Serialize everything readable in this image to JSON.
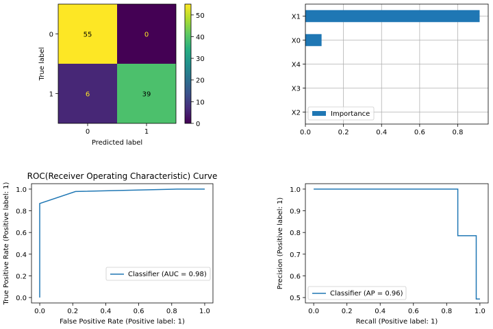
{
  "chart_data": [
    {
      "type": "heatmap",
      "xlabel": "Predicted label",
      "ylabel": "True label",
      "x_tick_labels": [
        "0",
        "1"
      ],
      "y_tick_labels": [
        "0",
        "1"
      ],
      "cells": [
        [
          55,
          0
        ],
        [
          6,
          39
        ]
      ],
      "cell_labels": [
        [
          "55",
          "0"
        ],
        [
          "6",
          "39"
        ]
      ],
      "colormap": "viridis",
      "colorbar_range": [
        0,
        55
      ],
      "colorbar_ticks": [
        "0",
        "10",
        "20",
        "30",
        "40",
        "50"
      ],
      "colors": {
        "high": "#fde725",
        "low": "#440154",
        "mid": "#3dbc74"
      }
    },
    {
      "type": "bar",
      "orientation": "horizontal",
      "categories": [
        "X1",
        "X0",
        "X4",
        "X3",
        "X2"
      ],
      "series": [
        {
          "name": "Importance",
          "values": [
            0.915,
            0.085,
            0.0,
            0.0,
            0.0
          ]
        }
      ],
      "xlim": [
        0,
        0.96
      ],
      "x_tick_labels": [
        "0.0",
        "0.2",
        "0.4",
        "0.6",
        "0.8"
      ],
      "grid": true,
      "legend_position": "lower-left",
      "color": "#1f77b4"
    },
    {
      "type": "line",
      "title": "ROC(Receiver Operating Characteristic) Curve",
      "xlabel": "False Positive Rate (Positive label: 1)",
      "ylabel": "True Positive Rate (Positive label: 1)",
      "x": [
        0.0,
        0.0,
        0.217,
        0.833,
        1.0
      ],
      "y": [
        0.0,
        0.867,
        0.978,
        1.0,
        1.0
      ],
      "xlim": [
        -0.05,
        1.05
      ],
      "ylim": [
        -0.05,
        1.05
      ],
      "x_tick_labels": [
        "0.0",
        "0.2",
        "0.4",
        "0.6",
        "0.8",
        "1.0"
      ],
      "y_tick_labels": [
        "0.0",
        "0.2",
        "0.4",
        "0.6",
        "0.8",
        "1.0"
      ],
      "legend": "Classifier (AUC = 0.98)",
      "legend_position": "lower-right",
      "color": "#1f77b4"
    },
    {
      "type": "line",
      "xlabel": "Recall (Positive label: 1)",
      "ylabel": "Precision (Positive label: 1)",
      "x": [
        0.0,
        0.867,
        0.867,
        0.978,
        0.978,
        1.0
      ],
      "y": [
        1.0,
        1.0,
        0.785,
        0.785,
        0.493,
        0.493
      ],
      "xlim": [
        -0.05,
        1.05
      ],
      "ylim": [
        0.475,
        1.025
      ],
      "x_tick_labels": [
        "0.0",
        "0.2",
        "0.4",
        "0.6",
        "0.8",
        "1.0"
      ],
      "y_tick_labels": [
        "0.5",
        "0.6",
        "0.7",
        "0.8",
        "0.9",
        "1.0"
      ],
      "legend": "Classifier (AP = 0.96)",
      "legend_position": "lower-left",
      "color": "#1f77b4"
    }
  ]
}
